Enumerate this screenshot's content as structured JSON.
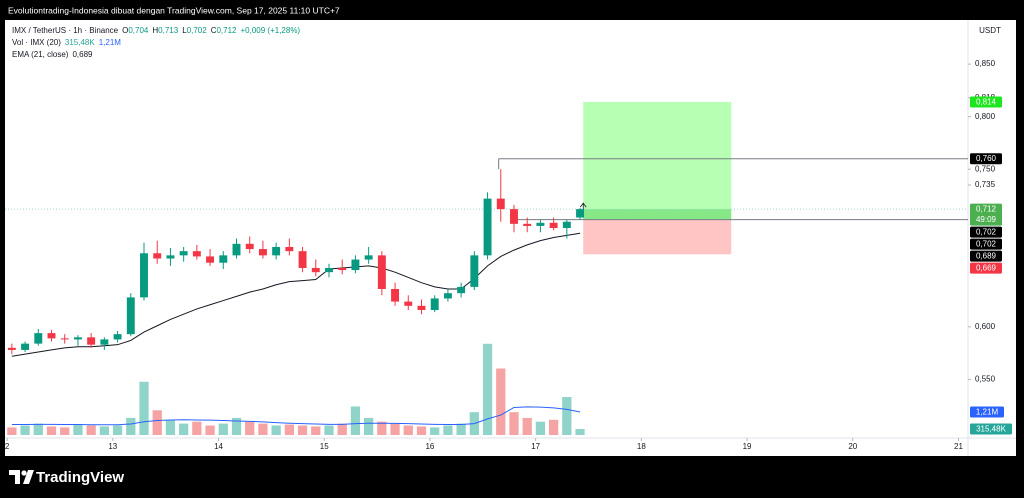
{
  "header": "Evolutiontrading-Indonesia dibuat dengan TradingView.com, Sep 17, 2025 11:10 UTC+7",
  "footer": "TradingView",
  "chart_data": {
    "type": "candlestick",
    "currency": "USDT",
    "symbol": "IMX / TetherUS · 1h · Binance",
    "ohlc_legend": [
      {
        "name": "O",
        "value": 0.704,
        "label": "0,704"
      },
      {
        "name": "H",
        "value": 0.713,
        "label": "0,713"
      },
      {
        "name": "L",
        "value": 0.702,
        "label": "0,702"
      },
      {
        "name": "C",
        "value": 0.712,
        "label": "0,712"
      }
    ],
    "change": "+0,009 (+1,28%)",
    "volume_legend": {
      "name": "Vol · IMX (20)",
      "last": {
        "value": 315480,
        "label": "315,48K"
      },
      "ma": {
        "value": 1210000,
        "label": "1,21M"
      }
    },
    "ema_legend": {
      "name": "EMA (21, close)",
      "value": {
        "value": 0.689,
        "label": "0,689"
      }
    },
    "x": [
      12.045,
      12.17,
      12.295,
      12.42,
      12.545,
      12.67,
      12.795,
      12.92,
      13.045,
      13.17,
      13.295,
      13.42,
      13.545,
      13.67,
      13.795,
      13.92,
      14.045,
      14.17,
      14.295,
      14.42,
      14.545,
      14.67,
      14.795,
      14.92,
      15.045,
      15.17,
      15.295,
      15.42,
      15.545,
      15.67,
      15.795,
      15.92,
      16.045,
      16.17,
      16.295,
      16.42,
      16.545,
      16.67,
      16.795,
      16.92,
      17.045,
      17.17,
      17.295,
      17.42
    ],
    "open": [
      0.58,
      0.578,
      0.584,
      0.594,
      0.589,
      0.588,
      0.59,
      0.583,
      0.588,
      0.593,
      0.628,
      0.67,
      0.665,
      0.668,
      0.672,
      0.667,
      0.661,
      0.668,
      0.679,
      0.674,
      0.668,
      0.676,
      0.672,
      0.656,
      0.652,
      0.656,
      0.654,
      0.664,
      0.668,
      0.636,
      0.624,
      0.62,
      0.616,
      0.627,
      0.632,
      0.638,
      0.668,
      0.722,
      0.712,
      0.698,
      0.696,
      0.699,
      0.694,
      0.704
    ],
    "high": [
      0.584,
      0.586,
      0.598,
      0.597,
      0.593,
      0.592,
      0.594,
      0.59,
      0.596,
      0.632,
      0.68,
      0.682,
      0.675,
      0.676,
      0.678,
      0.674,
      0.672,
      0.684,
      0.686,
      0.682,
      0.68,
      0.684,
      0.676,
      0.664,
      0.66,
      0.664,
      0.668,
      0.676,
      0.672,
      0.642,
      0.63,
      0.626,
      0.63,
      0.636,
      0.642,
      0.672,
      0.728,
      0.75,
      0.716,
      0.704,
      0.702,
      0.704,
      0.702,
      0.713
    ],
    "low": [
      0.574,
      0.576,
      0.582,
      0.586,
      0.584,
      0.582,
      0.58,
      0.578,
      0.585,
      0.591,
      0.625,
      0.66,
      0.658,
      0.662,
      0.664,
      0.658,
      0.655,
      0.665,
      0.67,
      0.665,
      0.664,
      0.668,
      0.652,
      0.648,
      0.647,
      0.65,
      0.651,
      0.66,
      0.63,
      0.62,
      0.616,
      0.612,
      0.614,
      0.624,
      0.628,
      0.635,
      0.664,
      0.7,
      0.69,
      0.69,
      0.69,
      0.692,
      0.684,
      0.702
    ],
    "close": [
      0.578,
      0.584,
      0.594,
      0.589,
      0.588,
      0.59,
      0.583,
      0.588,
      0.593,
      0.628,
      0.67,
      0.665,
      0.668,
      0.672,
      0.667,
      0.661,
      0.668,
      0.679,
      0.674,
      0.668,
      0.676,
      0.672,
      0.656,
      0.652,
      0.656,
      0.654,
      0.664,
      0.668,
      0.636,
      0.624,
      0.62,
      0.616,
      0.627,
      0.632,
      0.638,
      0.668,
      0.722,
      0.712,
      0.698,
      0.696,
      0.699,
      0.694,
      0.7,
      0.712
    ],
    "ema": [
      0.572,
      0.574,
      0.576,
      0.578,
      0.58,
      0.581,
      0.581,
      0.582,
      0.583,
      0.587,
      0.595,
      0.601,
      0.607,
      0.612,
      0.617,
      0.621,
      0.625,
      0.629,
      0.633,
      0.636,
      0.64,
      0.643,
      0.644,
      0.645,
      0.655,
      0.656,
      0.657,
      0.658,
      0.656,
      0.652,
      0.647,
      0.642,
      0.638,
      0.636,
      0.636,
      0.646,
      0.658,
      0.667,
      0.673,
      0.678,
      0.682,
      0.685,
      0.687,
      0.689
    ],
    "volume": [
      400000,
      500000,
      600000,
      450000,
      400000,
      550000,
      500000,
      450000,
      500000,
      900000,
      2800000,
      1300000,
      800000,
      600000,
      700000,
      500000,
      600000,
      900000,
      700000,
      600000,
      500000,
      550000,
      500000,
      450000,
      500000,
      600000,
      1500000,
      900000,
      700000,
      600000,
      500000,
      450000,
      400000,
      500000,
      600000,
      1200000,
      4800000,
      3500000,
      1200000,
      900000,
      700000,
      800000,
      2000000,
      315480
    ],
    "vol_ma": [
      550000,
      550000,
      560000,
      560000,
      550000,
      550000,
      540000,
      540000,
      540000,
      580000,
      700000,
      760000,
      790000,
      800000,
      790000,
      780000,
      760000,
      740000,
      720000,
      690000,
      650000,
      620000,
      600000,
      580000,
      560000,
      560000,
      600000,
      620000,
      620000,
      610000,
      600000,
      580000,
      560000,
      550000,
      550000,
      600000,
      850000,
      1050000,
      1450000,
      1480000,
      1470000,
      1430000,
      1350000,
      1210000
    ],
    "xlim": [
      11.98,
      21.09
    ],
    "ylim": [
      0.478,
      0.892
    ],
    "vol_lim": [
      0,
      8000000
    ],
    "xticks": [
      {
        "value": 12,
        "label": "2"
      },
      13,
      14,
      15,
      16,
      17,
      18,
      19,
      20,
      21
    ],
    "yticks": [
      {
        "value": 0.85,
        "label": "0,850"
      },
      {
        "value": 0.818,
        "label": "0,818"
      },
      {
        "value": 0.8,
        "label": "0,800"
      },
      {
        "value": 0.75,
        "label": "0,750"
      },
      {
        "value": 0.735,
        "label": "0,735"
      },
      {
        "value": 0.6,
        "label": "0,600"
      },
      {
        "value": 0.55,
        "label": "0,550"
      }
    ],
    "up_color": "#089981",
    "down_color": "#f23645",
    "volume_up_color": "#8fd3c9",
    "volume_down_color": "#f5a3a3",
    "ema_color": "#131722",
    "vol_ma_color": "#2962ff",
    "tags": [
      {
        "value": 0.814,
        "label": "0,814",
        "color": "#1ee61e"
      },
      {
        "value": 0.76,
        "label": "0,760",
        "color": "#000000"
      },
      {
        "value": 0.712,
        "label": "0,712",
        "color": "#4caf50",
        "countdown": "49:09"
      },
      {
        "value": 0.702,
        "label": "0,702",
        "color": "#000000"
      },
      {
        "value": 0.702,
        "label": "0,702",
        "color": "#000000"
      },
      {
        "value": 0.689,
        "label": "0,689",
        "color": "#000000"
      },
      {
        "value": 0.669,
        "label": "0,669",
        "color": "#f23645"
      }
    ],
    "position": {
      "x0": 17.45,
      "x1": 18.85,
      "target": 0.814,
      "entry": 0.702,
      "stop": 0.669,
      "profit_color": "#b7ffb3",
      "loss_color": "#ffc4c4",
      "progress_color": "#86e886"
    },
    "level_x0": 16.65
  }
}
